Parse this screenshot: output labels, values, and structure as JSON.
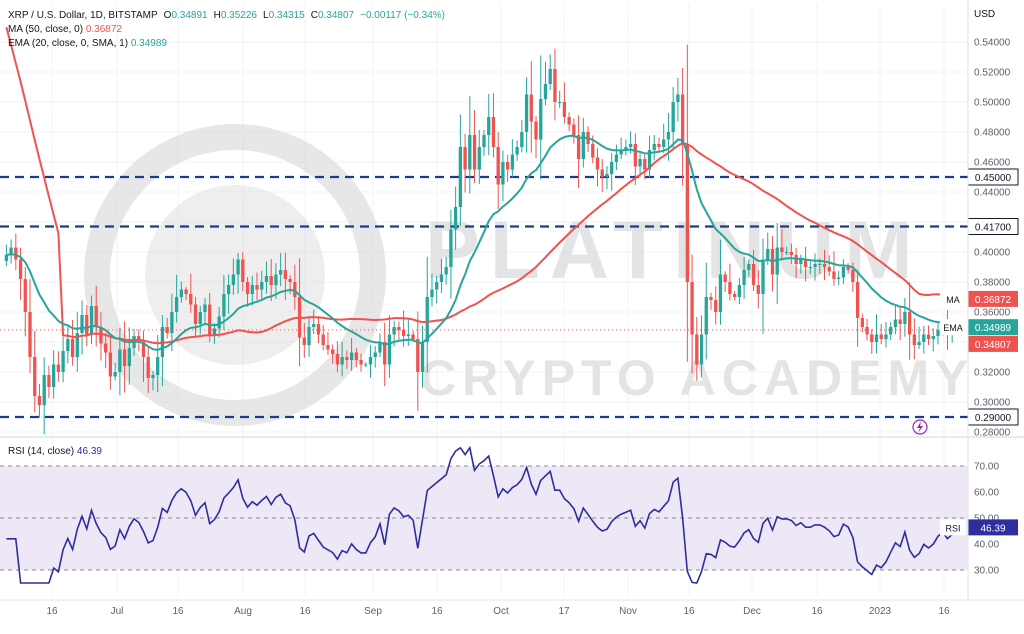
{
  "header": {
    "symbol": "XRP / U.S. Dollar, 1D, BITSTAMP",
    "o_label": "O",
    "o": "0.34891",
    "h_label": "H",
    "h": "0.35226",
    "l_label": "L",
    "l": "0.34315",
    "c_label": "C",
    "c": "0.34807",
    "chg": "−0.00117 (−0.34%)",
    "ma_label": "MA (50, close, 0)",
    "ma_val": "0.36872",
    "ema_label": "EMA (20, close, 0, SMA, 1)",
    "ema_val": "0.34989",
    "rsi_label": "RSI (14, close)",
    "rsi_val": "46.39"
  },
  "chart_data": [
    {
      "type": "candlestick",
      "currency": "USD",
      "ylim": [
        0.28,
        0.56
      ],
      "price_ticks": [
        "0.28000",
        "0.30000",
        "0.32000",
        "0.34000",
        "0.36000",
        "0.38000",
        "0.40000",
        "0.42000",
        "0.44000",
        "0.46000",
        "0.48000",
        "0.50000",
        "0.52000",
        "0.54000"
      ],
      "x_ticks": [
        "16",
        "Jul",
        "16",
        "Aug",
        "16",
        "Sep",
        "16",
        "Oct",
        "17",
        "Nov",
        "16",
        "Dec",
        "16",
        "2023",
        "16"
      ],
      "horizontal_levels": [
        {
          "label": "0.45000",
          "value": 0.45
        },
        {
          "label": "0.41700",
          "value": 0.417
        },
        {
          "label": "0.29000",
          "value": 0.29
        }
      ],
      "badges": [
        {
          "tag": "MA",
          "value": "0.36872",
          "color": "#ef5350"
        },
        {
          "tag": "EMA",
          "value": "0.34989",
          "color": "#26a69a"
        },
        {
          "tag": "",
          "value": "0.34807",
          "color": "#ef5350"
        }
      ],
      "close": [
        0.398,
        0.403,
        0.395,
        0.382,
        0.36,
        0.33,
        0.304,
        0.298,
        0.318,
        0.31,
        0.325,
        0.32,
        0.334,
        0.342,
        0.33,
        0.346,
        0.358,
        0.345,
        0.364,
        0.35,
        0.339,
        0.333,
        0.317,
        0.32,
        0.335,
        0.324,
        0.336,
        0.344,
        0.34,
        0.33,
        0.316,
        0.318,
        0.33,
        0.35,
        0.346,
        0.36,
        0.37,
        0.375,
        0.372,
        0.365,
        0.352,
        0.36,
        0.365,
        0.345,
        0.349,
        0.357,
        0.372,
        0.378,
        0.385,
        0.395,
        0.38,
        0.372,
        0.378,
        0.375,
        0.38,
        0.384,
        0.378,
        0.385,
        0.388,
        0.382,
        0.38,
        0.37,
        0.343,
        0.338,
        0.35,
        0.352,
        0.345,
        0.338,
        0.335,
        0.332,
        0.325,
        0.33,
        0.328,
        0.333,
        0.328,
        0.325,
        0.325,
        0.33,
        0.333,
        0.34,
        0.325,
        0.345,
        0.35,
        0.348,
        0.344,
        0.345,
        0.342,
        0.32,
        0.34,
        0.37,
        0.375,
        0.38,
        0.385,
        0.39,
        0.415,
        0.43,
        0.47,
        0.455,
        0.478,
        0.455,
        0.47,
        0.478,
        0.49,
        0.47,
        0.445,
        0.46,
        0.455,
        0.465,
        0.47,
        0.48,
        0.505,
        0.487,
        0.475,
        0.502,
        0.512,
        0.522,
        0.5,
        0.5,
        0.49,
        0.485,
        0.478,
        0.462,
        0.48,
        0.472,
        0.463,
        0.455,
        0.45,
        0.452,
        0.46,
        0.465,
        0.468,
        0.47,
        0.472,
        0.457,
        0.462,
        0.455,
        0.468,
        0.472,
        0.47,
        0.475,
        0.48,
        0.5,
        0.505,
        0.472,
        0.38,
        0.345,
        0.325,
        0.345,
        0.37,
        0.368,
        0.36,
        0.385,
        0.38,
        0.372,
        0.37,
        0.378,
        0.388,
        0.392,
        0.378,
        0.372,
        0.395,
        0.402,
        0.385,
        0.403,
        0.4,
        0.4,
        0.398,
        0.392,
        0.395,
        0.39,
        0.39,
        0.392,
        0.392,
        0.39,
        0.387,
        0.382,
        0.383,
        0.39,
        0.388,
        0.38,
        0.356,
        0.35,
        0.345,
        0.34,
        0.345,
        0.342,
        0.345,
        0.35,
        0.355,
        0.352,
        0.36,
        0.345,
        0.338,
        0.34,
        0.345,
        0.342,
        0.344,
        0.348,
        0.35,
        0.346,
        0.348,
        0.349,
        0.34807
      ]
    },
    {
      "type": "line",
      "title": "RSI (14, close)",
      "ylim": [
        20,
        80
      ],
      "y_ticks": [
        "30.00",
        "40.00",
        "50.00",
        "60.00",
        "70.00"
      ],
      "bands": [
        30,
        50,
        70
      ],
      "last_value": "46.39",
      "tag": "RSI"
    }
  ],
  "logo": {
    "big": "PLATINUM",
    "small": "CRYPTO ACADEMY"
  },
  "colors": {
    "up": "#26a69a",
    "down": "#ef5350",
    "ma": "#ef5350",
    "ema": "#26a69a",
    "rsi": "#2e2e9e",
    "level": "#1e3a8a",
    "grid": "#f0f3fa",
    "rsi_band": "#ede7f6"
  }
}
